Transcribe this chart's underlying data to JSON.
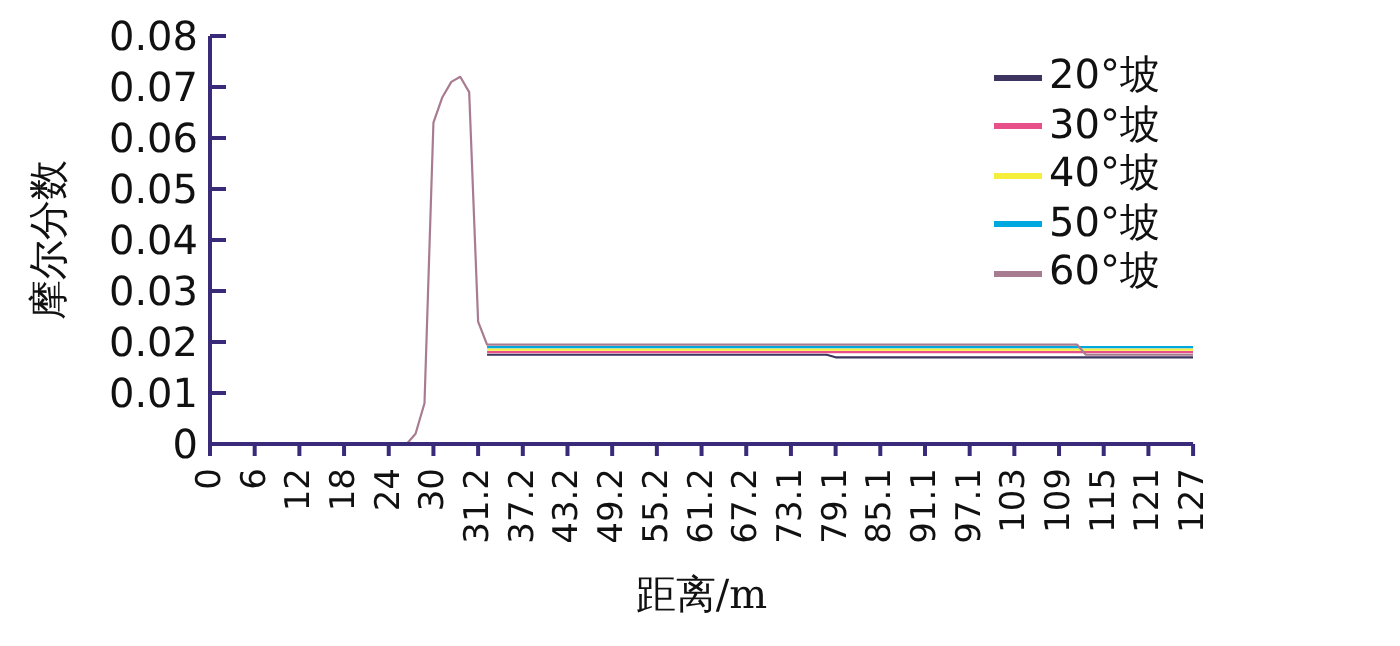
{
  "chart_data": {
    "type": "line",
    "xlabel": "距离/m",
    "ylabel": "摩尔分数",
    "categories": [
      "0",
      null,
      null,
      null,
      null,
      "6",
      null,
      null,
      null,
      null,
      "12",
      null,
      null,
      null,
      null,
      "18",
      null,
      null,
      null,
      null,
      "24",
      null,
      null,
      null,
      null,
      "30",
      null,
      null,
      null,
      null,
      "31.2",
      null,
      null,
      null,
      null,
      "37.2",
      null,
      null,
      null,
      null,
      "43.2",
      null,
      null,
      null,
      null,
      "49.2",
      null,
      null,
      null,
      null,
      "55.2",
      null,
      null,
      null,
      null,
      "61.2",
      null,
      null,
      null,
      null,
      "67.2",
      null,
      null,
      null,
      null,
      "73.1",
      null,
      null,
      null,
      null,
      "79.1",
      null,
      null,
      null,
      null,
      "85.1",
      null,
      null,
      null,
      null,
      "91.1",
      null,
      null,
      null,
      null,
      "97.1",
      null,
      null,
      null,
      null,
      "103",
      null,
      null,
      null,
      null,
      "109",
      null,
      null,
      null,
      null,
      "115",
      null,
      null,
      null,
      null,
      "121",
      null,
      null,
      null,
      null,
      "127"
    ],
    "series": [
      {
        "name": "20°坡",
        "color": "#3d3560",
        "values": [
          null,
          null,
          null,
          null,
          null,
          null,
          null,
          null,
          null,
          null,
          null,
          null,
          null,
          null,
          null,
          null,
          null,
          null,
          null,
          null,
          null,
          null,
          null,
          null,
          null,
          null,
          null,
          null,
          null,
          null,
          null,
          0.0175,
          0.0175,
          0.0175,
          0.0175,
          0.0175,
          0.0175,
          0.0175,
          0.0175,
          0.0175,
          0.0175,
          0.0175,
          0.0175,
          0.0175,
          0.0175,
          0.0175,
          0.0175,
          0.0175,
          0.0175,
          0.0175,
          0.0175,
          0.0175,
          0.0175,
          0.0175,
          0.0175,
          0.0175,
          0.0175,
          0.0175,
          0.0175,
          0.0175,
          0.0175,
          0.0175,
          0.0175,
          0.0175,
          0.0175,
          0.0175,
          0.0175,
          0.0175,
          0.0175,
          0.0175,
          0.017,
          0.017,
          0.017,
          0.017,
          0.017,
          0.017,
          0.017,
          0.017,
          0.017,
          0.017,
          0.017,
          0.017,
          0.017,
          0.017,
          0.017,
          0.017,
          0.017,
          0.017,
          0.017,
          0.017,
          0.017,
          0.017,
          0.017,
          0.017,
          0.017,
          0.017,
          0.017,
          0.017,
          0.017,
          0.017,
          0.017,
          0.017,
          0.017,
          0.017,
          0.017,
          0.017,
          0.017,
          0.017,
          0.017,
          0.017,
          0.017
        ]
      },
      {
        "name": "30°坡",
        "color": "#e8508a",
        "values": [
          null,
          null,
          null,
          null,
          null,
          null,
          null,
          null,
          null,
          null,
          null,
          null,
          null,
          null,
          null,
          null,
          null,
          null,
          null,
          null,
          null,
          null,
          null,
          null,
          null,
          null,
          null,
          null,
          null,
          null,
          null,
          0.018,
          0.018,
          0.018,
          0.018,
          0.018,
          0.018,
          0.018,
          0.018,
          0.018,
          0.018,
          0.018,
          0.018,
          0.018,
          0.018,
          0.018,
          0.018,
          0.018,
          0.018,
          0.018,
          0.018,
          0.018,
          0.018,
          0.018,
          0.018,
          0.018,
          0.018,
          0.018,
          0.018,
          0.018,
          0.018,
          0.018,
          0.018,
          0.018,
          0.018,
          0.018,
          0.018,
          0.018,
          0.018,
          0.018,
          0.018,
          0.018,
          0.018,
          0.018,
          0.018,
          0.018,
          0.018,
          0.018,
          0.018,
          0.018,
          0.018,
          0.018,
          0.018,
          0.018,
          0.018,
          0.018,
          0.018,
          0.018,
          0.018,
          0.018,
          0.018,
          0.018,
          0.018,
          0.018,
          0.018,
          0.018,
          0.018,
          0.018,
          0.018,
          0.018,
          0.018,
          0.018,
          0.018,
          0.018,
          0.018,
          0.018,
          0.018,
          0.018,
          0.018,
          0.018,
          0.018
        ]
      },
      {
        "name": "40°坡",
        "color": "#f5ee3a",
        "values": [
          null,
          null,
          null,
          null,
          null,
          null,
          null,
          null,
          null,
          null,
          null,
          null,
          null,
          null,
          null,
          null,
          null,
          null,
          null,
          null,
          null,
          null,
          null,
          null,
          null,
          null,
          null,
          null,
          null,
          null,
          null,
          0.0185,
          0.0185,
          0.0185,
          0.0185,
          0.0185,
          0.0185,
          0.0185,
          0.0185,
          0.0185,
          0.0185,
          0.0185,
          0.0185,
          0.0185,
          0.0185,
          0.0185,
          0.0185,
          0.0185,
          0.0185,
          0.0185,
          0.0185,
          0.0185,
          0.0185,
          0.0185,
          0.0185,
          0.0185,
          0.0185,
          0.0185,
          0.0185,
          0.0185,
          0.0185,
          0.0185,
          0.0185,
          0.0185,
          0.0185,
          0.0185,
          0.0185,
          0.0185,
          0.0185,
          0.0185,
          0.0185,
          0.0185,
          0.0185,
          0.0185,
          0.0185,
          0.0185,
          0.0185,
          0.0185,
          0.0185,
          0.0185,
          0.0185,
          0.0185,
          0.0185,
          0.0185,
          0.0185,
          0.0185,
          0.0185,
          0.0185,
          0.0185,
          0.0185,
          0.0185,
          0.0185,
          0.0185,
          0.0185,
          0.0185,
          0.0185,
          0.0185,
          0.0185,
          0.0185,
          0.0185,
          0.0185,
          0.0185,
          0.0185,
          0.0185,
          0.0185,
          0.0185,
          0.0185,
          0.0185,
          0.0185,
          0.0185,
          0.0185
        ]
      },
      {
        "name": "50°坡",
        "color": "#00a8e0",
        "values": [
          null,
          null,
          null,
          null,
          null,
          null,
          null,
          null,
          null,
          null,
          null,
          null,
          null,
          null,
          null,
          null,
          null,
          null,
          null,
          null,
          null,
          null,
          null,
          null,
          null,
          null,
          null,
          null,
          null,
          null,
          null,
          0.019,
          0.019,
          0.019,
          0.019,
          0.019,
          0.019,
          0.019,
          0.019,
          0.019,
          0.019,
          0.019,
          0.019,
          0.019,
          0.019,
          0.019,
          0.019,
          0.019,
          0.019,
          0.019,
          0.019,
          0.019,
          0.019,
          0.019,
          0.019,
          0.019,
          0.019,
          0.019,
          0.019,
          0.019,
          0.019,
          0.019,
          0.019,
          0.019,
          0.019,
          0.019,
          0.019,
          0.019,
          0.019,
          0.019,
          0.019,
          0.019,
          0.019,
          0.019,
          0.019,
          0.019,
          0.019,
          0.019,
          0.019,
          0.019,
          0.019,
          0.019,
          0.019,
          0.019,
          0.019,
          0.019,
          0.019,
          0.019,
          0.019,
          0.019,
          0.019,
          0.019,
          0.019,
          0.019,
          0.019,
          0.019,
          0.019,
          0.019,
          0.019,
          0.019,
          0.019,
          0.019,
          0.019,
          0.019,
          0.019,
          0.019,
          0.019,
          0.019,
          0.019,
          0.019,
          0.019
        ]
      },
      {
        "name": "60°坡",
        "color": "#a87c90",
        "values": [
          null,
          null,
          null,
          0,
          0,
          0,
          0,
          0,
          0,
          0,
          0,
          0,
          0,
          0,
          0,
          0,
          0,
          0,
          0,
          0,
          0,
          0,
          0,
          0.002,
          0.008,
          0.063,
          0.068,
          0.071,
          0.072,
          0.069,
          0.024,
          0.0195,
          0.0195,
          0.0195,
          0.0195,
          0.0195,
          0.0195,
          0.0195,
          0.0195,
          0.0195,
          0.0195,
          0.0195,
          0.0195,
          0.0195,
          0.0195,
          0.0195,
          0.0195,
          0.0195,
          0.0195,
          0.0195,
          0.0195,
          0.0195,
          0.0195,
          0.0195,
          0.0195,
          0.0195,
          0.0195,
          0.0195,
          0.0195,
          0.0195,
          0.0195,
          0.0195,
          0.0195,
          0.0195,
          0.0195,
          0.0195,
          0.0195,
          0.0195,
          0.0195,
          0.0195,
          0.0195,
          0.0195,
          0.0195,
          0.0195,
          0.0195,
          0.0195,
          0.0195,
          0.0195,
          0.0195,
          0.0195,
          0.0195,
          0.0195,
          0.0195,
          0.0195,
          0.0195,
          0.0195,
          0.0195,
          0.0195,
          0.0195,
          0.0195,
          0.0195,
          0.0195,
          0.0195,
          0.0195,
          0.0195,
          0.0195,
          0.0195,
          0.0195,
          0.0175,
          0.0175,
          0.0175,
          0.0175,
          0.0175,
          0.0175,
          0.0175,
          0.0175,
          0.0175,
          0.0175,
          0.0175,
          0.0175,
          0.0175
        ]
      }
    ],
    "ylim": [
      0,
      0.08
    ],
    "yticks": [
      0,
      0.01,
      0.02,
      0.03,
      0.04,
      0.05,
      0.06,
      0.07,
      0.08
    ],
    "grid": false,
    "legend": "top right",
    "marker": "none",
    "line_style": "solid"
  }
}
